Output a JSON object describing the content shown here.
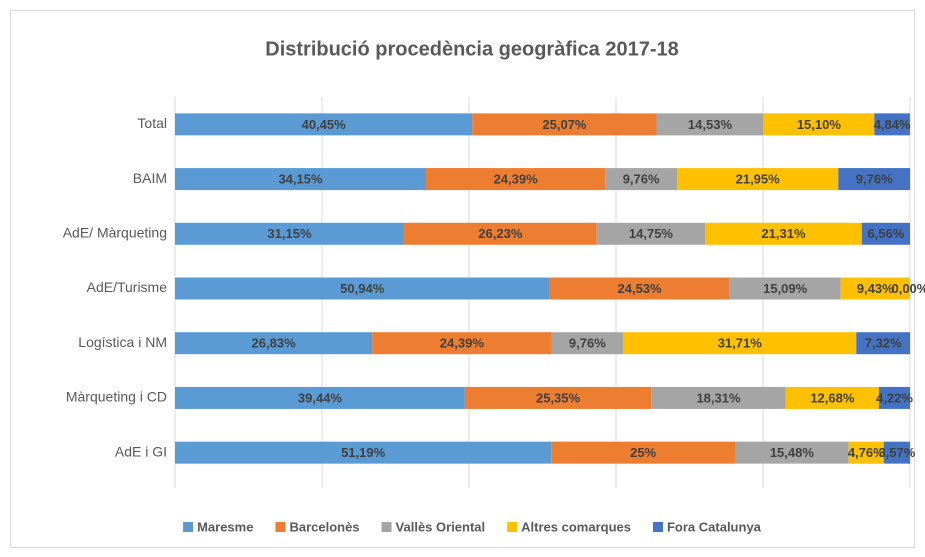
{
  "chart_data": {
    "type": "stacked_barh",
    "title": "Distribució procedència geogràfica 2017-18",
    "categories": [
      "Total",
      "BAIM",
      "AdE/ Màrqueting",
      "AdE/Turisme",
      "Logística i NM",
      "Màrqueting i CD",
      "AdE i GI"
    ],
    "series": [
      {
        "name": "Maresme",
        "color": "#5b9bd5",
        "values": [
          40.45,
          34.15,
          31.15,
          50.94,
          26.83,
          39.44,
          51.19
        ],
        "value_labels": [
          "40,45%",
          "34,15%",
          "31,15%",
          "50,94%",
          "26,83%",
          "39,44%",
          "51,19%"
        ]
      },
      {
        "name": "Barcelonès",
        "color": "#ed7d31",
        "values": [
          25.07,
          24.39,
          26.23,
          24.53,
          24.39,
          25.35,
          25
        ],
        "value_labels": [
          "25,07%",
          "24,39%",
          "26,23%",
          "24,53%",
          "24,39%",
          "25,35%",
          "25%"
        ]
      },
      {
        "name": "Vallès Oriental",
        "color": "#a5a5a5",
        "values": [
          14.53,
          9.76,
          14.75,
          15.09,
          9.76,
          18.31,
          15.48
        ],
        "value_labels": [
          "14,53%",
          "9,76%",
          "14,75%",
          "15,09%",
          "9,76%",
          "18,31%",
          "15,48%"
        ]
      },
      {
        "name": "Altres comarques",
        "color": "#ffc000",
        "values": [
          15.1,
          21.95,
          21.31,
          9.43,
          31.71,
          12.68,
          4.76
        ],
        "value_labels": [
          "15,10%",
          "21,95%",
          "21,31%",
          "9,43%",
          "31,71%",
          "12,68%",
          "4,76%"
        ]
      },
      {
        "name": "Fora Catalunya",
        "color": "#4472c4",
        "values": [
          4.84,
          9.76,
          6.56,
          0.0,
          7.32,
          4.22,
          3.57
        ],
        "value_labels": [
          "4,84%",
          "9,76%",
          "6,56%",
          "0,00%",
          "7,32%",
          "4,22%",
          "3,57%"
        ]
      }
    ],
    "xlim": [
      0,
      100
    ],
    "xticks": [
      0,
      20,
      40,
      60,
      80,
      100
    ],
    "grid": true,
    "legend": "bottom"
  }
}
